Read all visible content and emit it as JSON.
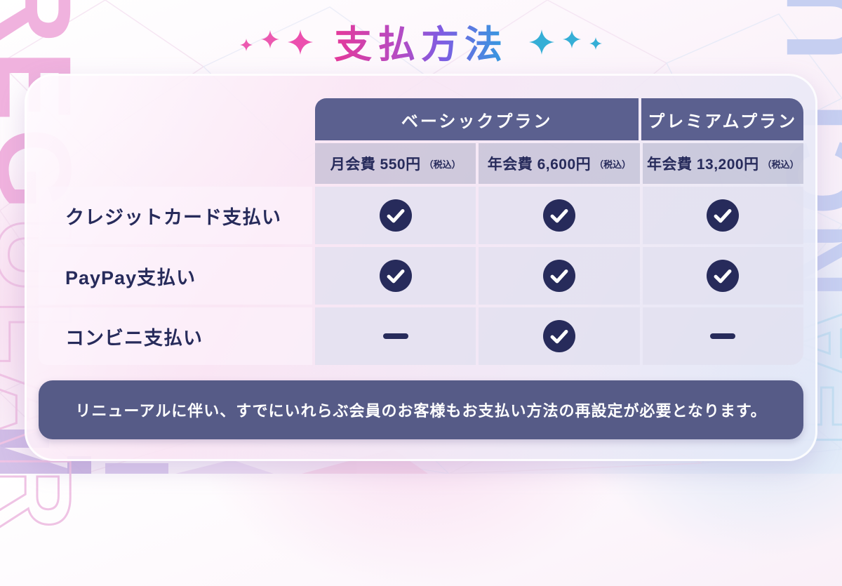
{
  "title": "支払方法",
  "background": {
    "left_word_solid": "REG",
    "left_word_outline": "ULAR",
    "right_word_outline": "FA",
    "right_word_solid": "NCLUB"
  },
  "colors": {
    "accent_pink": "#ec59b0",
    "accent_cyan": "#35aed6",
    "navy": "#272b5b",
    "header_band": "#5b608f",
    "note_bg": "#565b87"
  },
  "table": {
    "plan_headers": [
      {
        "label": "ベーシックプラン"
      },
      {
        "label": "プレミアムプラン"
      }
    ],
    "fee_headers": [
      {
        "fee": "月会費 550円",
        "tax_note": "（税込）"
      },
      {
        "fee": "年会費 6,600円",
        "tax_note": "（税込）"
      },
      {
        "fee": "年会費 13,200円",
        "tax_note": "（税込）"
      }
    ],
    "rows": [
      {
        "label": "クレジットカード支払い",
        "values": [
          "check",
          "check",
          "check"
        ]
      },
      {
        "label": "PayPay支払い",
        "values": [
          "check",
          "check",
          "check"
        ]
      },
      {
        "label": "コンビニ支払い",
        "values": [
          "dash",
          "check",
          "dash"
        ]
      }
    ]
  },
  "note": "リニューアルに伴い、すでにいれらぶ会員のお客様もお支払い方法の再設定が必要となります。"
}
